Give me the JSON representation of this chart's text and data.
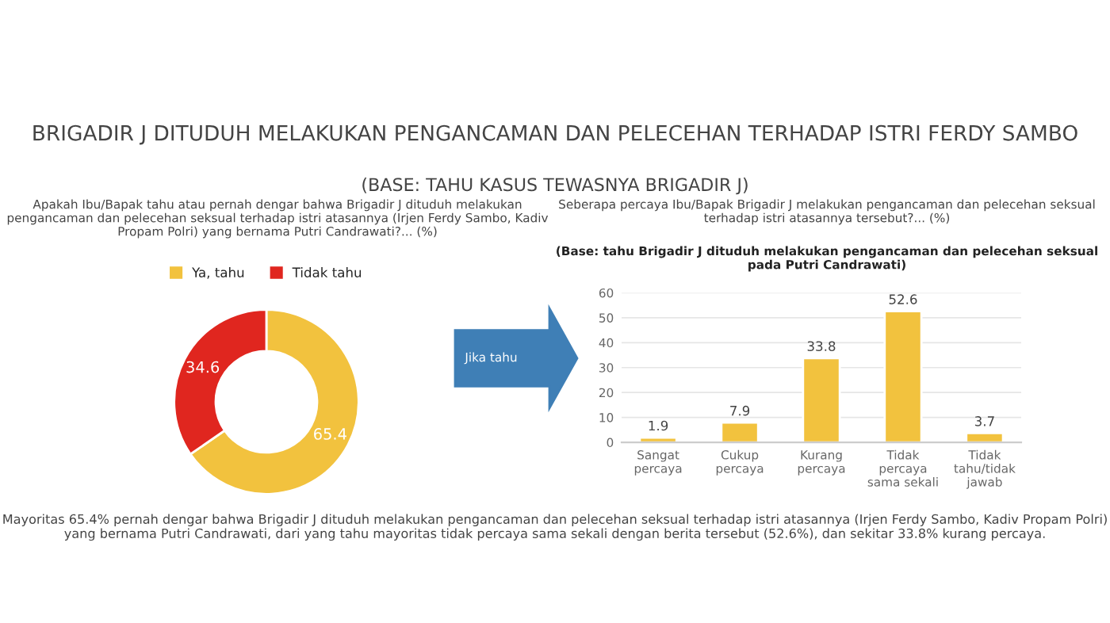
{
  "chart_data": [
    {
      "type": "donut",
      "title": "BRIGADIR J DITUDUH MELAKUKAN PENGANCAMAN DAN PELECEHAN TERHADAP ISTRI FERDY SAMBO",
      "subtitle": "(BASE: TAHU KASUS TEWASNYA BRIGADIR J)",
      "categories": [
        "Ya, tahu",
        "Tidak tahu"
      ],
      "values": [
        65.4,
        34.6
      ],
      "colors": [
        "#f2c23e",
        "#e0261f"
      ],
      "data_labels": true,
      "legend": "top",
      "annotations": [
        "Apakah Ibu/Bapak tahu atau pernah dengar bahwa Brigadir J dituduh melakukan pengancaman dan pelecehan seksual terhadap istri atasannya (Irjen Ferdy Sambo, Kadiv Propam Polri) yang bernama Putri Candrawati?... (%)",
        "Jika tahu"
      ]
    },
    {
      "type": "bar",
      "title": "Seberapa percaya Ibu/Bapak Brigadir J melakukan pengancaman dan pelecehan seksual terhadap istri atasannya tersebut?... (%)",
      "subtitle": "(Base: tahu Brigadir J dituduh melakukan pengancaman dan pelecehan seksual pada Putri Candrawati)",
      "categories": [
        "Sangat\npercaya",
        "Cukup\npercaya",
        "Kurang\npercaya",
        "Tidak\npercaya\nsama sekali",
        "Tidak\ntahu/tidak\njawab"
      ],
      "values": [
        1.9,
        7.9,
        33.8,
        52.6,
        3.7
      ],
      "color": "#f2c23e",
      "ylim": [
        0,
        60
      ],
      "yticks": [
        0,
        10,
        20,
        30,
        40,
        50,
        60
      ],
      "grid": "y",
      "data_labels": true,
      "annotations": [
        "Mayoritas 65.4% pernah dengar bahwa Brigadir J dituduh melakukan pengancaman dan pelecehan seksual terhadap istri atasannya (Irjen Ferdy Sambo, Kadiv Propam Polri) yang bernama Putri Candrawati, dari yang tahu mayoritas tidak percaya sama sekali dengan berita tersebut (52.6%), dan sekitar 33.8% kurang percaya."
      ]
    }
  ]
}
